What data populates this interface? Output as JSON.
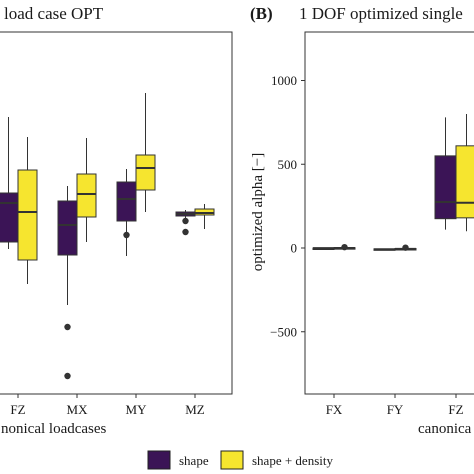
{
  "chart_data": [
    {
      "type": "box",
      "title": "load case OPT",
      "xlabel": "nonical loadcases",
      "ylabel": "",
      "categories": [
        "FZ",
        "MX",
        "MY",
        "MZ"
      ],
      "grid": false,
      "series": [
        {
          "name": "shape",
          "boxes": [
            {
              "category": "FZ",
              "min": 225,
              "q1": 232,
              "median": 271,
              "q3": 281,
              "max": 357,
              "outliers": []
            },
            {
              "category": "MX",
              "min": 169,
              "q1": 219,
              "median": 249,
              "q3": 273,
              "max": 288,
              "outliers": [
                147,
                98
              ]
            },
            {
              "category": "MY",
              "min": 218,
              "q1": 253,
              "median": 275,
              "q3": 292,
              "max": 305,
              "outliers": [
                239
              ]
            },
            {
              "category": "MZ",
              "min": 256,
              "q1": 258,
              "median": 260,
              "q3": 262,
              "max": 264,
              "outliers": [
                253,
                242
              ]
            }
          ]
        },
        {
          "name": "shape + density",
          "boxes": [
            {
              "category": "FZ",
              "min": 190,
              "q1": 214,
              "median": 262,
              "q3": 304,
              "max": 337,
              "outliers": []
            },
            {
              "category": "MX",
              "min": 232,
              "q1": 257,
              "median": 280,
              "q3": 300,
              "max": 336,
              "outliers": []
            },
            {
              "category": "MY",
              "min": 262,
              "q1": 284,
              "median": 306,
              "q3": 319,
              "max": 381,
              "outliers": []
            },
            {
              "category": "MZ",
              "min": 245,
              "q1": 259,
              "median": 261,
              "q3": 265,
              "max": 270,
              "outliers": []
            }
          ]
        }
      ]
    },
    {
      "type": "box",
      "panel_label": "(B)",
      "title": "1 DOF optimized single",
      "xlabel": "canonica",
      "ylabel": "optimized alpha [−]",
      "categories": [
        "FX",
        "FY",
        "FZ"
      ],
      "ylim": [
        -900,
        1100
      ],
      "yticks": [
        "1000",
        "500",
        "0",
        "−500"
      ],
      "grid": false,
      "series": [
        {
          "name": "shape",
          "boxes": [
            {
              "category": "FX",
              "min": -3,
              "q1": -2,
              "median": -1,
              "q3": 0,
              "max": 1,
              "outliers": []
            },
            {
              "category": "FY",
              "min": -13,
              "q1": -10,
              "median": -8,
              "q3": -5,
              "max": -3,
              "outliers": []
            },
            {
              "category": "FZ",
              "min": 110,
              "q1": 175,
              "median": 275,
              "q3": 550,
              "max": 780,
              "outliers": []
            }
          ]
        },
        {
          "name": "shape + density",
          "boxes": [
            {
              "category": "FX",
              "min": -3,
              "q1": -2,
              "median": 0,
              "q3": 2,
              "max": 4,
              "outliers": [
                5
              ]
            },
            {
              "category": "FY",
              "min": -10,
              "q1": -8,
              "median": -5,
              "q3": -3,
              "max": 0,
              "outliers": [
                2
              ]
            },
            {
              "category": "FZ",
              "min": 100,
              "q1": 180,
              "median": 270,
              "q3": 610,
              "max": 800,
              "outliers": []
            }
          ]
        }
      ]
    }
  ],
  "legend": {
    "items": [
      {
        "label": "shape",
        "color": "#3b1456"
      },
      {
        "label": "shape + density",
        "color": "#f6e52f"
      }
    ]
  },
  "colors": {
    "shape": "#3b1456",
    "shape_density": "#f6e52f",
    "outline": "#333333"
  }
}
